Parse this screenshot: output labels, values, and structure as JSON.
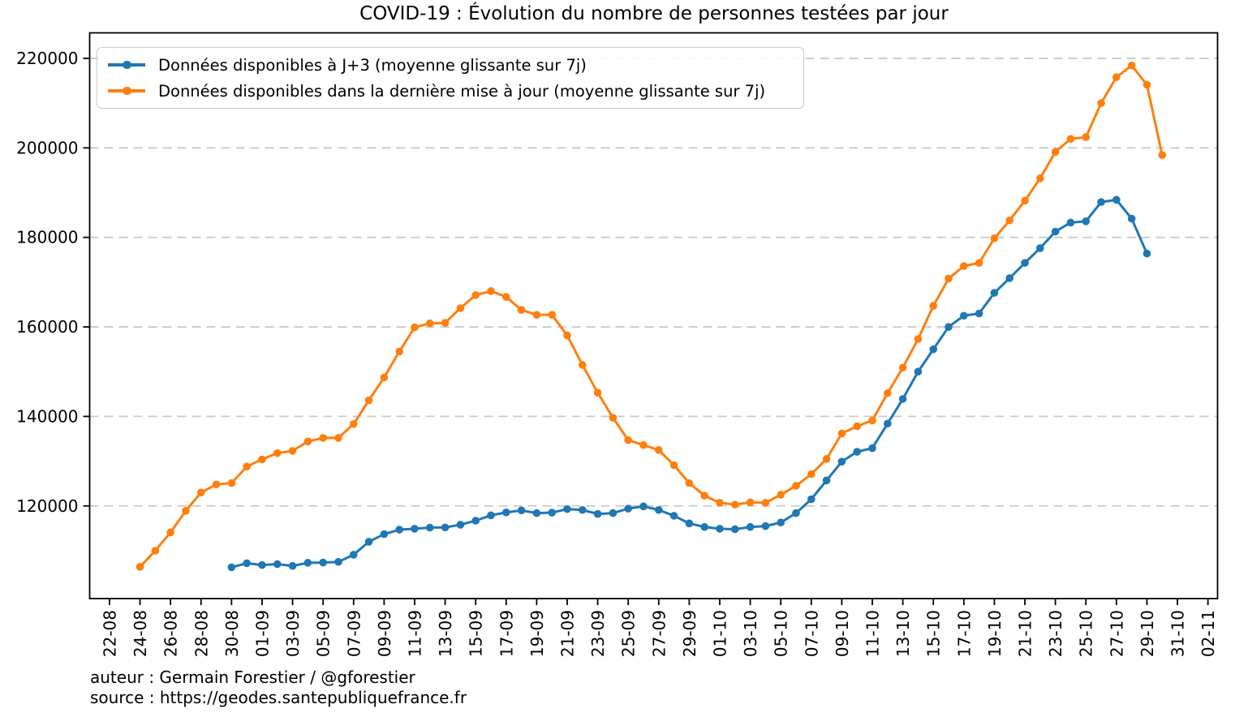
{
  "header": {
    "title": "COVID-19 : Évolution du nombre de personnes testées par jour"
  },
  "legend": {
    "entries": [
      {
        "label": "Données disponibles à J+3 (moyenne glissante sur 7j)",
        "color": "#1f77b4"
      },
      {
        "label": "Données disponibles dans la dernière mise à jour (moyenne glissante sur 7j)",
        "color": "#ff7f0e"
      }
    ]
  },
  "footer": {
    "author_line": "auteur : Germain Forestier / @gforestier",
    "source_line": "source : https://geodes.santepubliquefrance.fr"
  },
  "chart_data": {
    "type": "line",
    "title": "COVID-19 : Évolution du nombre de personnes testées par jour",
    "grid": "horizontal-dashed",
    "grid_color": "#c9c9c9",
    "legend_position": "upper left",
    "x_tick_labels": [
      "22-08",
      "24-08",
      "26-08",
      "28-08",
      "30-08",
      "01-09",
      "03-09",
      "05-09",
      "07-09",
      "09-09",
      "11-09",
      "13-09",
      "15-09",
      "17-09",
      "19-09",
      "21-09",
      "23-09",
      "25-09",
      "27-09",
      "29-09",
      "01-10",
      "03-10",
      "05-10",
      "07-10",
      "09-10",
      "11-10",
      "13-10",
      "15-10",
      "17-10",
      "19-10",
      "21-10",
      "23-10",
      "25-10",
      "27-10",
      "29-10",
      "31-10",
      "02-11"
    ],
    "x_tick_day_step": 2,
    "y_ticks": [
      120000,
      140000,
      160000,
      180000,
      200000,
      220000
    ],
    "y_tick_labels": [
      "120000",
      "140000",
      "160000",
      "180000",
      "200000",
      "220000"
    ],
    "ylim": [
      99300,
      225700
    ],
    "xlim_day_units": [
      -1.3,
      72.63
    ],
    "series": [
      {
        "name": "Données disponibles à J+3 (moyenne glissante sur 7j)",
        "color": "#1f77b4",
        "start_date": "30-08",
        "start_day_index": 8,
        "values": [
          106300,
          107200,
          106800,
          107000,
          106600,
          107300,
          107350,
          107500,
          109100,
          112000,
          113700,
          114700,
          114900,
          115150,
          115200,
          115800,
          116700,
          117900,
          118550,
          119000,
          118400,
          118500,
          119300,
          119100,
          118200,
          118400,
          119400,
          119900,
          119100,
          117800,
          116100,
          115300,
          114900,
          114800,
          115300,
          115500,
          116300,
          118400,
          121500,
          125700,
          129900,
          132100,
          132900,
          138400,
          143900,
          150000,
          155000,
          160000,
          162500,
          163000,
          167600,
          170900,
          174300,
          177600,
          181300,
          183300,
          183600,
          187900,
          188400,
          184200,
          176400
        ]
      },
      {
        "name": "Données disponibles dans la dernière mise à jour (moyenne glissante sur 7j)",
        "color": "#ff7f0e",
        "start_date": "24-08",
        "start_day_index": 2,
        "values": [
          106400,
          110000,
          114100,
          118900,
          123000,
          124800,
          125100,
          128800,
          130400,
          131800,
          132300,
          134400,
          135200,
          135200,
          138300,
          143600,
          148700,
          154500,
          159900,
          160800,
          160900,
          164200,
          167100,
          168000,
          166700,
          163800,
          162700,
          162700,
          158100,
          151500,
          145300,
          139700,
          134700,
          133600,
          132500,
          129100,
          125100,
          122300,
          120700,
          120300,
          120800,
          120700,
          122500,
          124500,
          127100,
          130500,
          136200,
          137800,
          139100,
          145200,
          150900,
          157300,
          164700,
          170800,
          173600,
          174300,
          179800,
          183800,
          188200,
          193200,
          199100,
          202000,
          202400,
          210000,
          215800,
          218400,
          214100,
          198400
        ]
      }
    ]
  }
}
